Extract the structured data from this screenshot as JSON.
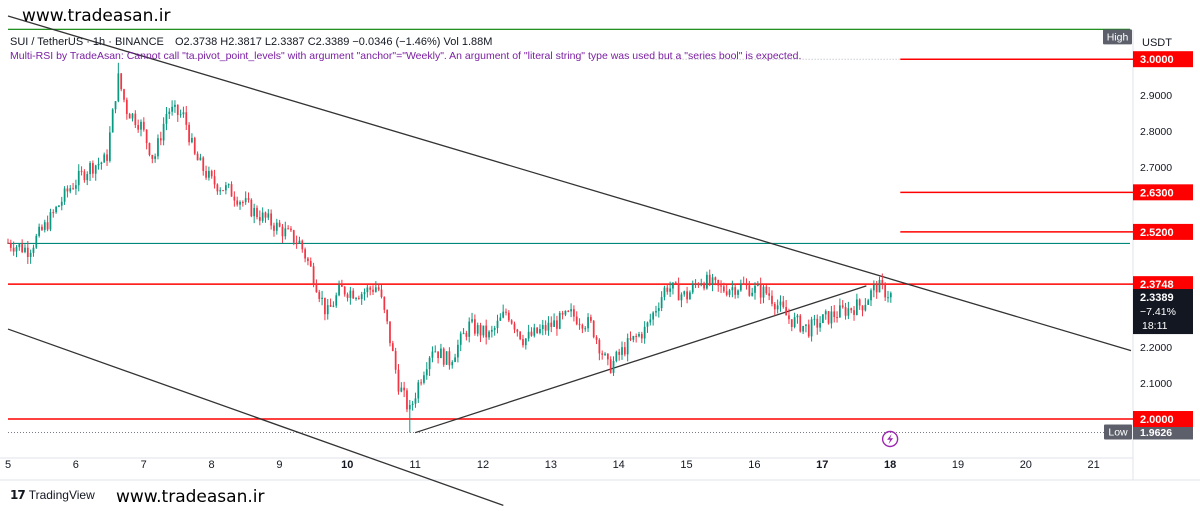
{
  "watermark_top": "www.tradeasan.ir",
  "watermark_bottom": "www.tradeasan.ir",
  "branding": {
    "logo_mark": "17",
    "logo_text": "TradingView"
  },
  "header": {
    "symbol": "SUI / TetherUS · 1h · BINANCE",
    "ohlc": "O2.3738  H2.3817  L2.3387  C2.3389  −0.0346 (−1.46%)  Vol 1.88M",
    "error": "Multi-RSI by TradeAsan: Cannot call \"ta.pivot_point_levels\" with argument \"anchor\"=\"Weekly\". An argument of \"literal string\" type was used but a \"series bool\" is expected."
  },
  "currency": "USDT",
  "colors": {
    "up": "#089981",
    "down": "#f23645",
    "level": "#ff0000",
    "green_line": "#008000",
    "teal_line": "#00897b",
    "trend": "#333333",
    "bolt": "#9c27b0"
  },
  "chart_data": {
    "type": "candlestick",
    "symbol": "SUI / TetherUS",
    "timeframe": "1h",
    "exchange": "BINANCE",
    "x_ticks": [
      "5",
      "6",
      "7",
      "8",
      "9",
      "10",
      "11",
      "12",
      "13",
      "14",
      "15",
      "16",
      "17",
      "18",
      "19",
      "20",
      "21"
    ],
    "x_range": [
      5,
      21.55
    ],
    "y_ticks": [
      "2.9000",
      "2.8000",
      "2.7000",
      "2.2000",
      "2.1000"
    ],
    "y_range": [
      1.9,
      3.07
    ],
    "last_price": {
      "value": "2.3389",
      "change": "−7.41%",
      "countdown": "18:11"
    },
    "low_marker": {
      "label": "Low",
      "value": "1.9626"
    },
    "high_marker": {
      "label": "High"
    },
    "levels": [
      {
        "value": 3.0,
        "label": "3.0000",
        "from_day": 18.15
      },
      {
        "value": 2.63,
        "label": "2.6300",
        "from_day": 18.15
      },
      {
        "value": 2.52,
        "label": "2.5200",
        "from_day": 18.15
      },
      {
        "value": 2.3748,
        "label": "2.3748",
        "from_day": 5
      },
      {
        "value": 2.0,
        "label": "2.0000",
        "from_day": 5
      }
    ],
    "extra_lines": [
      {
        "name": "high",
        "value": 3.083,
        "color": "#008000"
      },
      {
        "name": "support",
        "value": 2.488,
        "color": "#00897b"
      }
    ],
    "trend_lines": [
      {
        "name": "upper-channel",
        "points": [
          [
            5.0,
            3.12
          ],
          [
            21.55,
            2.19
          ]
        ]
      },
      {
        "name": "lower-channel",
        "points": [
          [
            5.0,
            2.25
          ],
          [
            12.3,
            1.76
          ]
        ]
      },
      {
        "name": "rising-trend",
        "points": [
          [
            11.0,
            1.962
          ],
          [
            17.65,
            2.37
          ]
        ]
      }
    ],
    "price_path": [
      [
        5.0,
        2.49
      ],
      [
        5.3,
        2.47
      ],
      [
        5.6,
        2.55
      ],
      [
        5.9,
        2.64
      ],
      [
        6.2,
        2.7
      ],
      [
        6.45,
        2.72
      ],
      [
        6.62,
        2.95
      ],
      [
        6.75,
        2.86
      ],
      [
        6.95,
        2.82
      ],
      [
        7.15,
        2.72
      ],
      [
        7.35,
        2.86
      ],
      [
        7.6,
        2.84
      ],
      [
        7.75,
        2.73
      ],
      [
        8.0,
        2.66
      ],
      [
        8.3,
        2.63
      ],
      [
        8.6,
        2.58
      ],
      [
        9.0,
        2.53
      ],
      [
        9.3,
        2.49
      ],
      [
        9.5,
        2.4
      ],
      [
        9.7,
        2.29
      ],
      [
        9.9,
        2.36
      ],
      [
        10.2,
        2.35
      ],
      [
        10.45,
        2.37
      ],
      [
        10.6,
        2.25
      ],
      [
        10.75,
        2.1
      ],
      [
        10.92,
        2.02
      ],
      [
        11.05,
        2.1
      ],
      [
        11.25,
        2.2
      ],
      [
        11.5,
        2.16
      ],
      [
        11.8,
        2.26
      ],
      [
        12.1,
        2.23
      ],
      [
        12.35,
        2.3
      ],
      [
        12.6,
        2.22
      ],
      [
        12.9,
        2.25
      ],
      [
        13.3,
        2.29
      ],
      [
        13.6,
        2.26
      ],
      [
        13.85,
        2.14
      ],
      [
        14.1,
        2.2
      ],
      [
        14.4,
        2.25
      ],
      [
        14.7,
        2.37
      ],
      [
        15.0,
        2.34
      ],
      [
        15.2,
        2.39
      ],
      [
        15.5,
        2.36
      ],
      [
        15.8,
        2.37
      ],
      [
        16.2,
        2.35
      ],
      [
        16.5,
        2.28
      ],
      [
        16.8,
        2.25
      ],
      [
        17.05,
        2.28
      ],
      [
        17.3,
        2.3
      ],
      [
        17.6,
        2.32
      ],
      [
        17.8,
        2.37
      ],
      [
        18.05,
        2.339
      ]
    ],
    "bolt_day": 18.0
  }
}
